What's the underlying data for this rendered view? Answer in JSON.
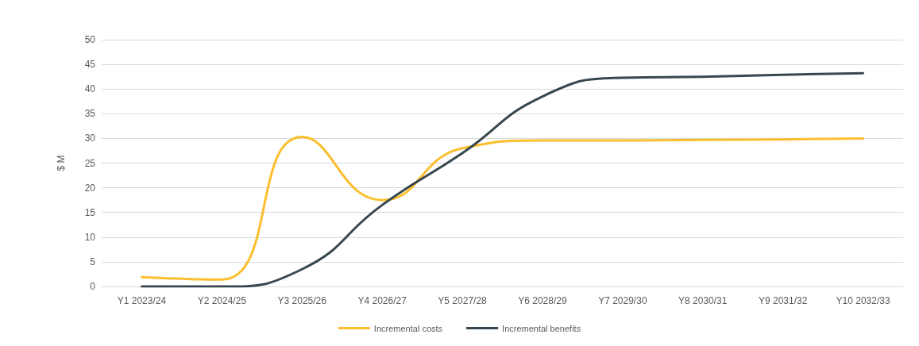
{
  "chart_data": {
    "type": "line",
    "ylabel": "$ M",
    "categories": [
      "Y1 2023/24",
      "Y2 2024/25",
      "Y3 2025/26",
      "Y4 2026/27",
      "Y5 2027/28",
      "Y6 2028/29",
      "Y7 2029/30",
      "Y8 2030/31",
      "Y9 2031/32",
      "Y10 2032/33"
    ],
    "series": [
      {
        "name": "Incremental costs",
        "color": "#fbbf2d",
        "values": [
          1.9,
          1.4,
          30.3,
          17.5,
          28,
          29.6,
          29.6,
          29.7,
          29.8,
          30
        ]
      },
      {
        "name": "Incremental benefits",
        "color": "#37474f",
        "values": [
          0,
          0,
          3.5,
          16.5,
          27,
          38.5,
          42.3,
          42.5,
          42.9,
          43.2
        ]
      }
    ],
    "ylim": [
      0,
      50
    ],
    "yticks": [
      0,
      5,
      10,
      15,
      20,
      25,
      30,
      35,
      40,
      45,
      50
    ],
    "grid": "y",
    "legend": "bottom",
    "marker": "none",
    "line_style": "solid"
  }
}
